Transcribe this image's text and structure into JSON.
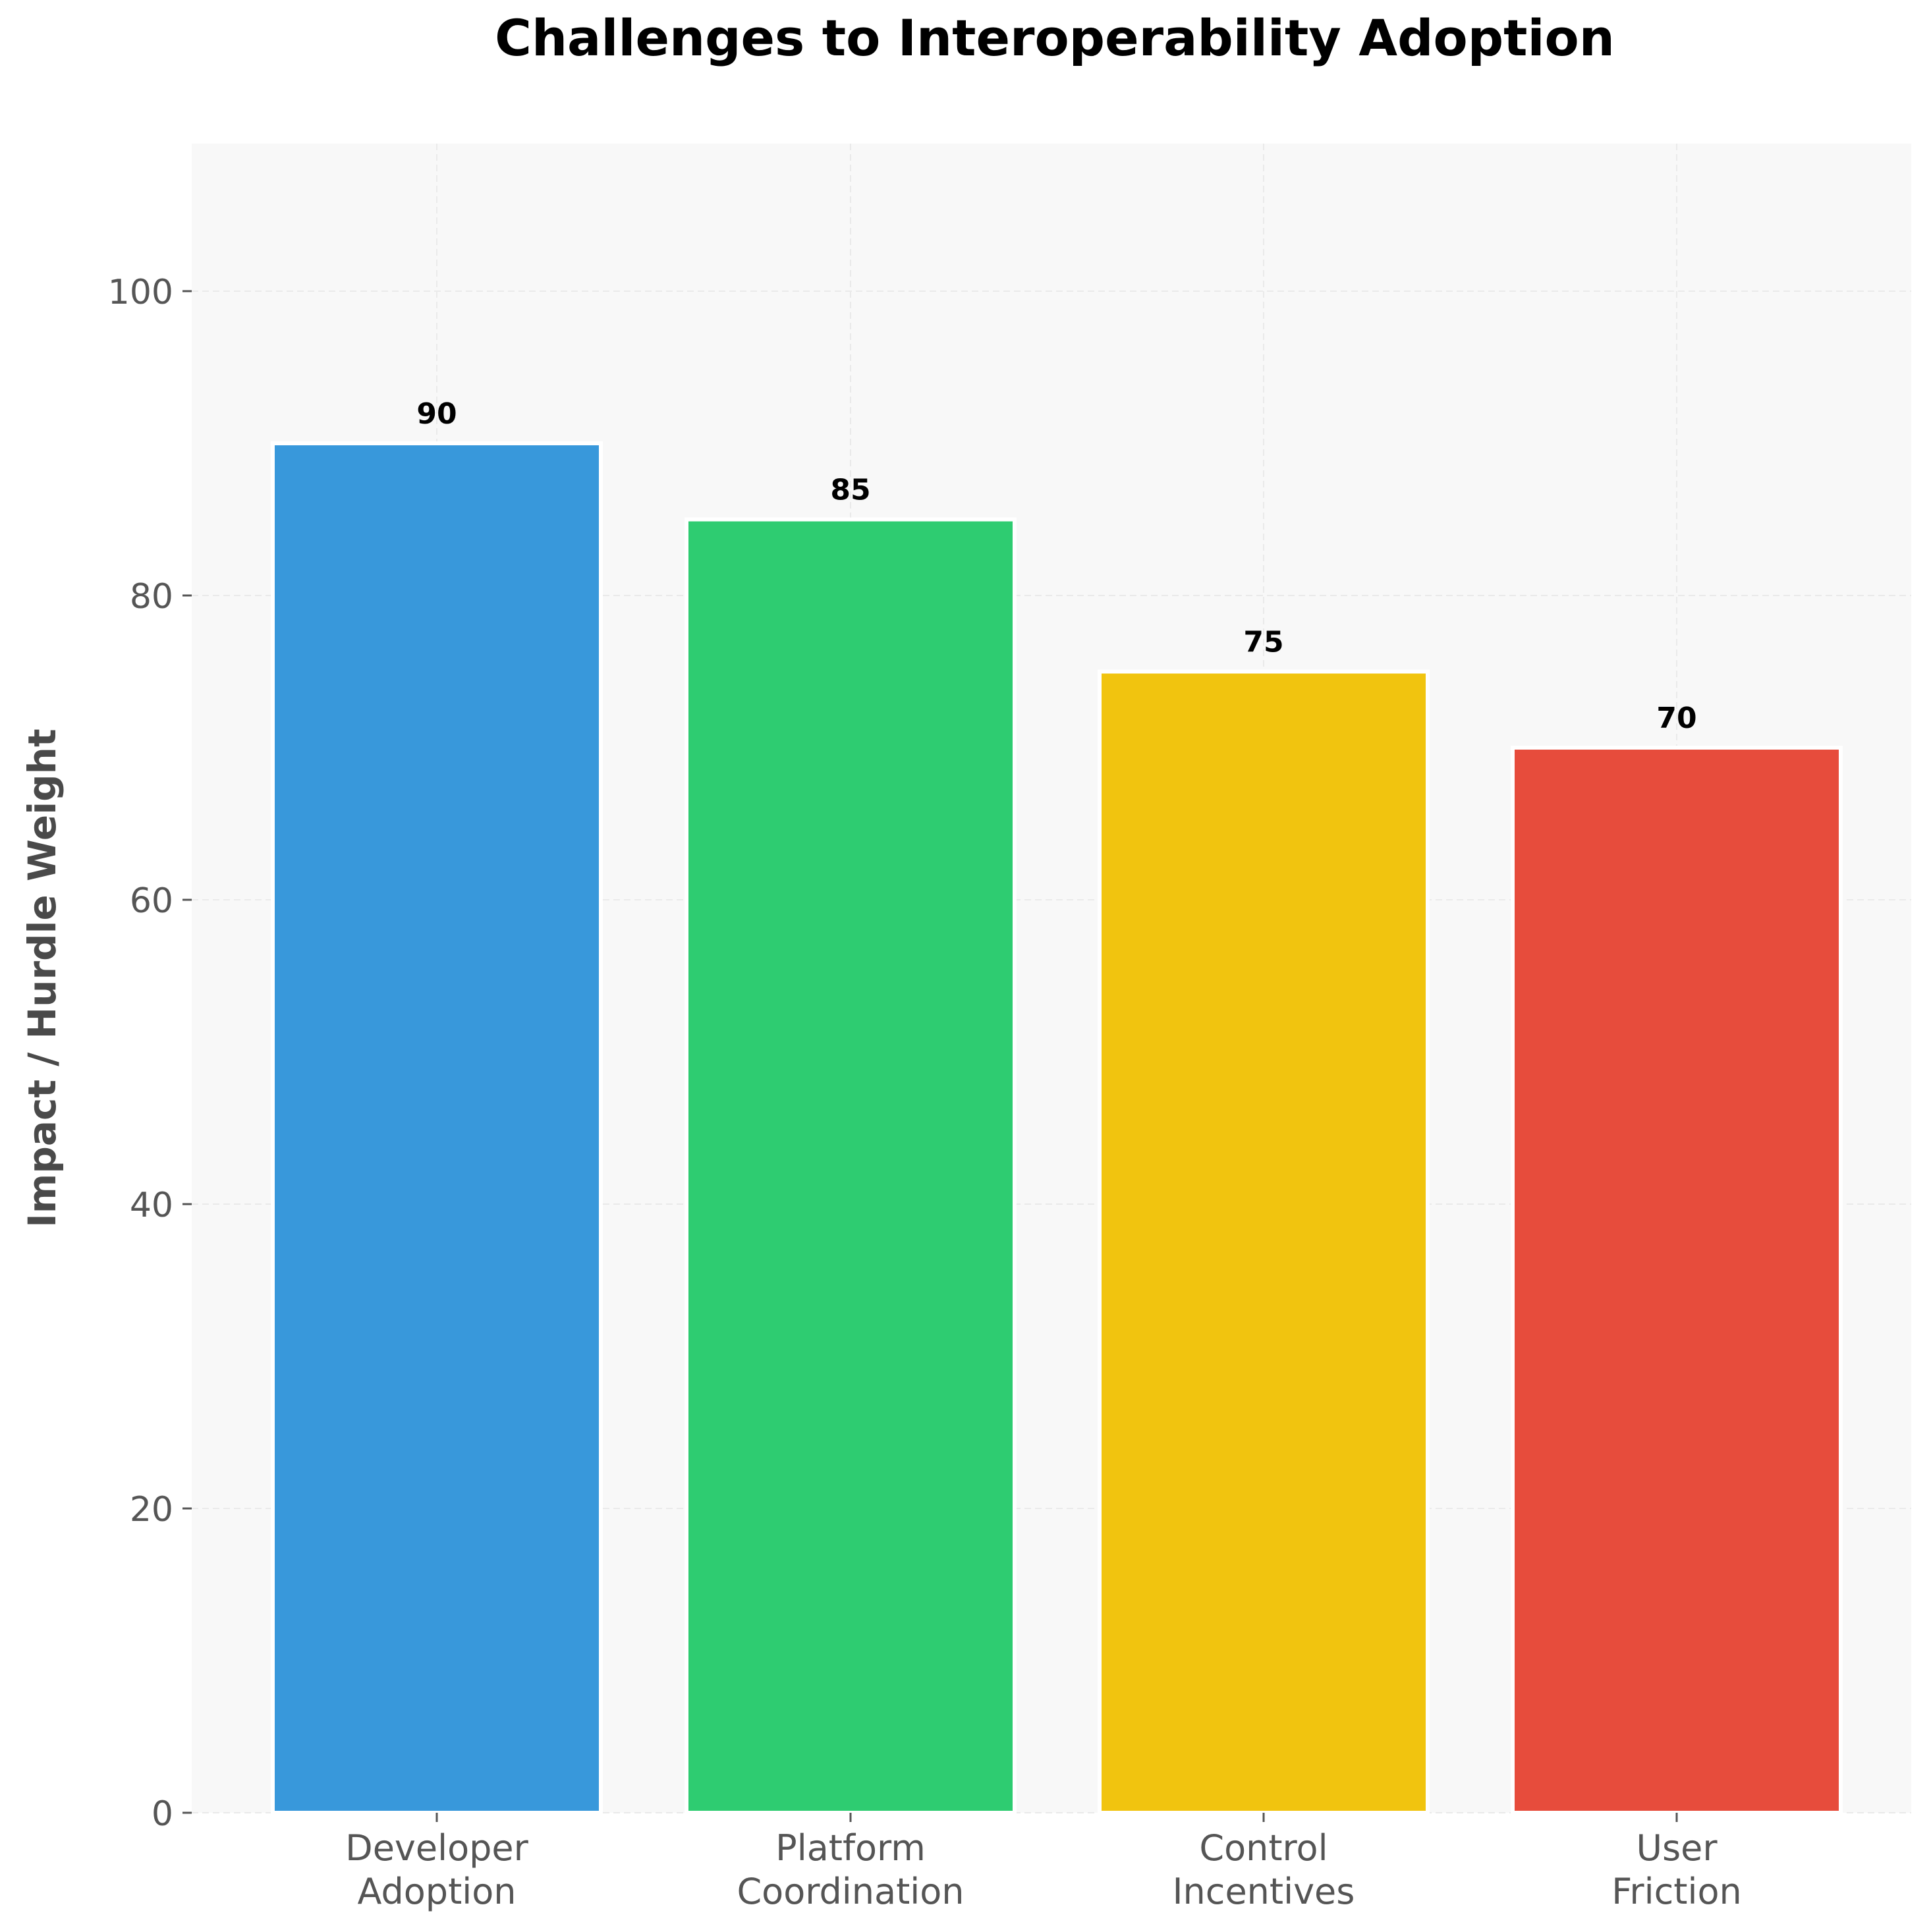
{
  "chart_data": {
    "type": "bar",
    "title": "Challenges to Interoperability Adoption",
    "xlabel": "",
    "ylabel": "Impact / Hurdle Weight",
    "categories": [
      [
        "Developer",
        "Adoption"
      ],
      [
        "Platform",
        "Coordination"
      ],
      [
        "Control",
        "Incentives"
      ],
      [
        "User",
        "Friction"
      ]
    ],
    "values": [
      90,
      85,
      75,
      70
    ],
    "value_labels": [
      "90",
      "85",
      "75",
      "70"
    ],
    "bar_colors": [
      "#3898DB",
      "#2ECC71",
      "#F1C40F",
      "#E74C3C"
    ],
    "ylim": [
      0,
      110
    ],
    "yticks": [
      0,
      20,
      40,
      60,
      80,
      100
    ],
    "ytick_labels": [
      "0",
      "20",
      "40",
      "60",
      "80",
      "100"
    ],
    "grid": true,
    "background": "#F8F8F8"
  }
}
